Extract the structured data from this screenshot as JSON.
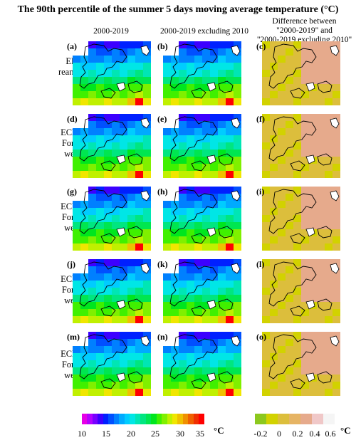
{
  "title": "The 90th percentile of the summer 5 days moving average temperature (°C)",
  "columns": [
    {
      "header": "2000-2019"
    },
    {
      "header": "2000-2019 excluding 2010"
    },
    {
      "header_line1": "Difference between",
      "header_line2": "\"2000-2019\" and",
      "header_line3": "\"2000-2019 excluding 2010\""
    }
  ],
  "rows": [
    {
      "line1": "ERA5",
      "line2": "reanalyses",
      "line3": ""
    },
    {
      "line1": "ECMWF",
      "line2": "Forecast",
      "line3": "week 1"
    },
    {
      "line1": "ECMWF",
      "line2": "Forecast",
      "line3": "week 2"
    },
    {
      "line1": "ECMWF",
      "line2": "Forecast",
      "line3": "week 3"
    },
    {
      "line1": "ECMWF",
      "line2": "Forecast",
      "line3": "week 4"
    }
  ],
  "panel_labels": [
    "(a)",
    "(b)",
    "(c)",
    "(d)",
    "(e)",
    "(f)",
    "(g)",
    "(h)",
    "(i)",
    "(j)",
    "(k)",
    "(l)",
    "(m)",
    "(n)",
    "(o)"
  ],
  "temperature_colorbar": {
    "ticks": [
      "10",
      "15",
      "20",
      "25",
      "30",
      "35"
    ],
    "unit": "°C",
    "colors": [
      "#e600e6",
      "#b400ff",
      "#7800ff",
      "#3c00ff",
      "#0020ff",
      "#0050ff",
      "#0080ff",
      "#00aaff",
      "#00ccff",
      "#00e6e6",
      "#00e6b4",
      "#00e680",
      "#00e650",
      "#00e61e",
      "#40f000",
      "#80f000",
      "#c0f000",
      "#f0e600",
      "#f0c000",
      "#f09000",
      "#f06000",
      "#f03000",
      "#ff0000"
    ]
  },
  "difference_colorbar": {
    "ticks": [
      "-0.2",
      "0",
      "0.2",
      "0.4",
      "0.6"
    ],
    "unit": "°C",
    "colors": [
      "#8cc81e",
      "#d2d200",
      "#dcbe3c",
      "#e6b464",
      "#e6aa8c",
      "#f0c8c8",
      "#f5f5f5"
    ]
  }
}
